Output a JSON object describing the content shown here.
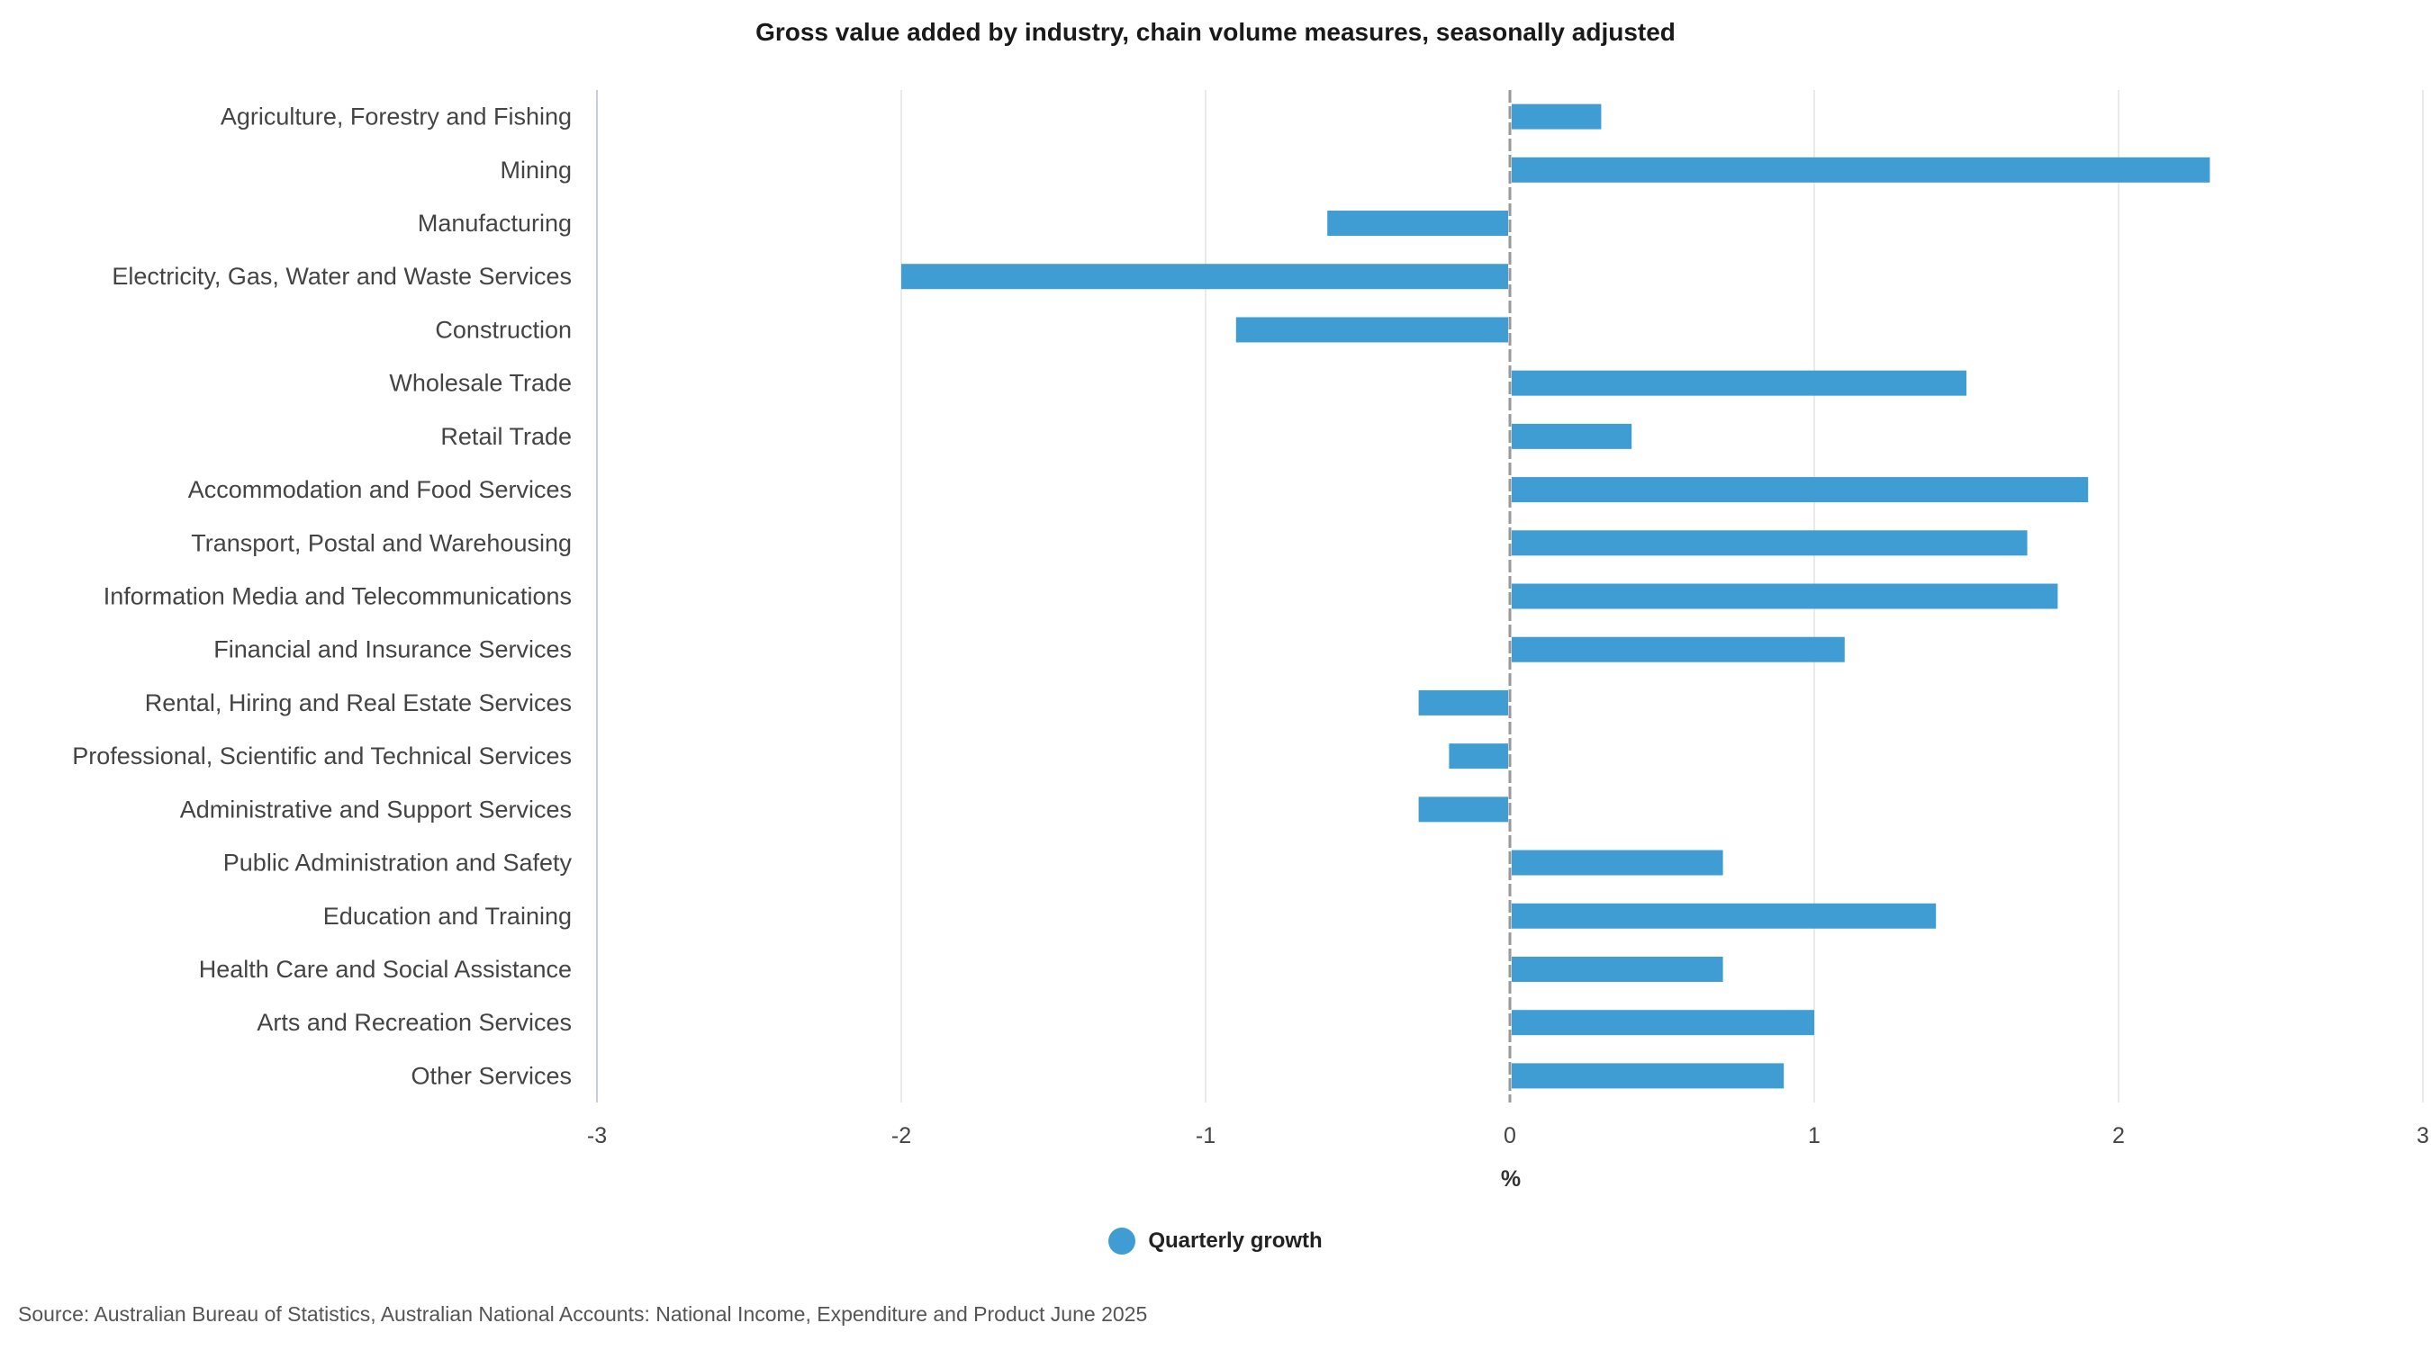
{
  "chart_data": {
    "type": "bar",
    "orientation": "horizontal",
    "title": "Gross value added by industry, chain volume measures, seasonally adjusted",
    "xlabel": "%",
    "ylabel": "",
    "xlim": [
      -3,
      3
    ],
    "x_ticks": [
      "-3",
      "-2",
      "-1",
      "0",
      "1",
      "2",
      "3"
    ],
    "grid": true,
    "legend_position": "bottom",
    "categories": [
      "Agriculture, Forestry and Fishing",
      "Mining",
      "Manufacturing",
      "Electricity, Gas, Water and Waste Services",
      "Construction",
      "Wholesale Trade",
      "Retail Trade",
      "Accommodation and Food Services",
      "Transport, Postal and Warehousing",
      "Information Media and Telecommunications",
      "Financial and Insurance Services",
      "Rental, Hiring and Real Estate Services",
      "Professional, Scientific and Technical Services",
      "Administrative and Support Services",
      "Public Administration and Safety",
      "Education and Training",
      "Health Care and Social Assistance",
      "Arts and Recreation Services",
      "Other Services"
    ],
    "series": [
      {
        "name": "Quarterly growth",
        "color": "#3f9dd4",
        "values": [
          0.3,
          2.3,
          -0.6,
          -2.0,
          -0.9,
          1.5,
          0.4,
          1.9,
          1.7,
          1.8,
          1.1,
          -0.3,
          -0.2,
          -0.3,
          0.7,
          1.4,
          0.7,
          1.0,
          0.9
        ]
      }
    ],
    "source": "Source: Australian Bureau of Statistics, Australian National Accounts: National Income, Expenditure and Product June 2025"
  },
  "colors": {
    "bar": "#3f9dd4",
    "grid": "#e3e3e3",
    "zero_line": "#999999",
    "axis_line": "#c9cbe3"
  }
}
